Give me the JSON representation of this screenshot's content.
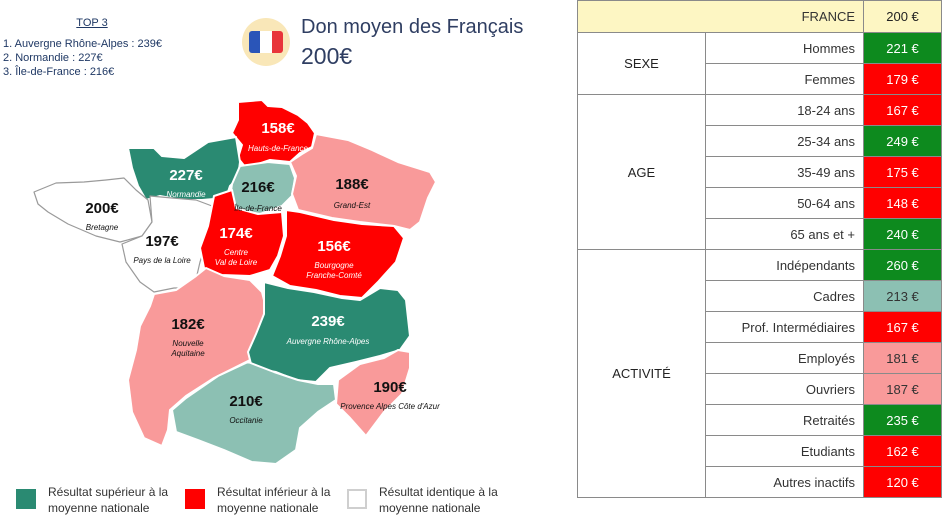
{
  "colors": {
    "above": "#2a8a72",
    "below": "#ff0000",
    "same": "#ffffff",
    "below_light": "#f99a9a",
    "above_light": "#8cc0b3",
    "table_header": "#fdf6c3",
    "table_green": "#0d8a1e"
  },
  "top3": {
    "title": "TOP 3",
    "items": [
      "1. Auvergne Rhône-Alpes : 239€",
      "2. Normandie : 227€",
      "3. Île-de-France : 216€"
    ]
  },
  "header": {
    "icon": "france-flag-icon",
    "title": "Don moyen des Français",
    "value": "200€"
  },
  "regions": [
    {
      "name": "Hauts-de-France",
      "value": "158€",
      "tone": "below"
    },
    {
      "name": "Normandie",
      "value": "227€",
      "tone": "above"
    },
    {
      "name": "Île-de-France",
      "value": "216€",
      "tone": "above_light"
    },
    {
      "name": "Grand-Est",
      "value": "188€",
      "tone": "below_light"
    },
    {
      "name": "Bretagne",
      "value": "200€",
      "tone": "same"
    },
    {
      "name": "Pays de la Loire",
      "value": "197€",
      "tone": "same"
    },
    {
      "name": "Centre\nVal de Loire",
      "value": "174€",
      "tone": "below"
    },
    {
      "name": "Bourgogne\nFranche-Comté",
      "value": "156€",
      "tone": "below"
    },
    {
      "name": "Nouvelle\nAquitaine",
      "value": "182€",
      "tone": "below_light"
    },
    {
      "name": "Auvergne Rhône-Alpes",
      "value": "239€",
      "tone": "above"
    },
    {
      "name": "Occitanie",
      "value": "210€",
      "tone": "above_light"
    },
    {
      "name": "Provence Alpes Côte d'Azur",
      "value": "190€",
      "tone": "below_light"
    }
  ],
  "legend": [
    {
      "text": "Résultat supérieur à la moyenne nationale",
      "color": "#2a8a72"
    },
    {
      "text": "Résultat inférieur à la moyenne nationale",
      "color": "#ff0000"
    },
    {
      "text": "Résultat identique à la moyenne nationale",
      "color": "#ffffff"
    }
  ],
  "table": {
    "france_label": "FRANCE",
    "france_value": "200 €",
    "groups": [
      {
        "label": "SEXE",
        "rows": [
          {
            "label": "Hommes",
            "value": "221 €",
            "bg": "#0d8a1e"
          },
          {
            "label": "Femmes",
            "value": "179 €",
            "bg": "#ff0000"
          }
        ]
      },
      {
        "label": "AGE",
        "rows": [
          {
            "label": "18-24 ans",
            "value": "167 €",
            "bg": "#ff0000"
          },
          {
            "label": "25-34 ans",
            "value": "249 €",
            "bg": "#0d8a1e"
          },
          {
            "label": "35-49 ans",
            "value": "175 €",
            "bg": "#ff0000"
          },
          {
            "label": "50-64 ans",
            "value": "148 €",
            "bg": "#ff0000"
          },
          {
            "label": "65 ans et +",
            "value": "240 €",
            "bg": "#0d8a1e"
          }
        ]
      },
      {
        "label": "ACTIVITÉ",
        "rows": [
          {
            "label": "Indépendants",
            "value": "260 €",
            "bg": "#0d8a1e"
          },
          {
            "label": "Cadres",
            "value": "213 €",
            "bg": "#8cc0b3"
          },
          {
            "label": "Prof. Intermédiaires",
            "value": "167 €",
            "bg": "#ff0000"
          },
          {
            "label": "Employés",
            "value": "181 €",
            "bg": "#f99a9a"
          },
          {
            "label": "Ouvriers",
            "value": "187 €",
            "bg": "#f99a9a"
          },
          {
            "label": "Retraités",
            "value": "235 €",
            "bg": "#0d8a1e"
          },
          {
            "label": "Etudiants",
            "value": "162 €",
            "bg": "#ff0000"
          },
          {
            "label": "Autres inactifs",
            "value": "120 €",
            "bg": "#ff0000"
          }
        ]
      }
    ]
  }
}
